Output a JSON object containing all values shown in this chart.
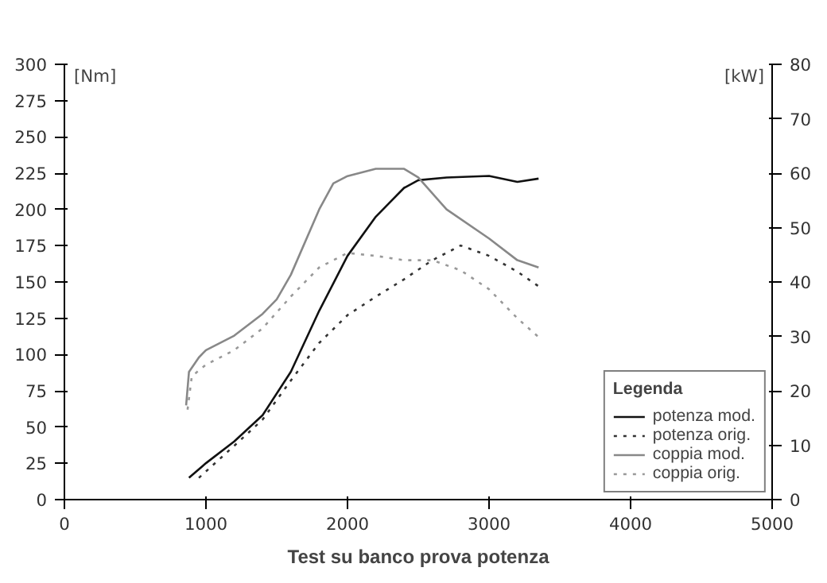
{
  "chart_data": {
    "type": "line",
    "title": "Test su banco prova potenza",
    "ylabel": "[Nm]",
    "y2label": "[kW]",
    "legend_title": "Legenda",
    "legend": "bottom right",
    "grid": false,
    "xlim": [
      0,
      5000
    ],
    "xticks": [
      0,
      1000,
      2000,
      3000,
      4000,
      5000
    ],
    "ylim": [
      0,
      300
    ],
    "yticks": [
      0,
      25,
      50,
      75,
      100,
      125,
      150,
      175,
      200,
      225,
      250,
      275,
      300
    ],
    "y2lim": [
      0,
      80
    ],
    "y2ticks": [
      0,
      10,
      20,
      30,
      40,
      50,
      60,
      70,
      80
    ],
    "series": [
      {
        "name": "potenza mod.",
        "color": "#111111",
        "axis": "y2",
        "line_style": "solid",
        "x": [
          880,
          1000,
          1200,
          1400,
          1600,
          1800,
          2000,
          2200,
          2400,
          2500,
          2700,
          3000,
          3200,
          3350
        ],
        "values": [
          4,
          6.7,
          10.7,
          15.5,
          23.5,
          34.7,
          44.8,
          52,
          57.3,
          58.7,
          59.2,
          59.5,
          58.4,
          59
        ]
      },
      {
        "name": "potenza orig.",
        "color": "#333333",
        "axis": "y2",
        "line_style": "dotted",
        "x": [
          950,
          1200,
          1400,
          1600,
          1800,
          2000,
          2200,
          2400,
          2600,
          2800,
          3000,
          3200,
          3350
        ],
        "values": [
          4,
          9.9,
          14.7,
          21.9,
          28.8,
          33.9,
          37.3,
          40.5,
          44,
          46.7,
          44.8,
          41.9,
          39.2
        ]
      },
      {
        "name": "coppia mod.",
        "color": "#888888",
        "line_style": "solid",
        "x": [
          860,
          880,
          950,
          1000,
          1200,
          1400,
          1500,
          1600,
          1800,
          1900,
          2000,
          2200,
          2400,
          2500,
          2700,
          3000,
          3200,
          3350
        ],
        "values": [
          65,
          88,
          98,
          103,
          113,
          128,
          138,
          155,
          200,
          218,
          223,
          228,
          228,
          222,
          200,
          180,
          165,
          160
        ]
      },
      {
        "name": "coppia orig.",
        "color": "#999999",
        "line_style": "dotted",
        "x": [
          870,
          900,
          1000,
          1200,
          1400,
          1600,
          1800,
          2000,
          2200,
          2400,
          2600,
          2800,
          3000,
          3200,
          3350
        ],
        "values": [
          62,
          85,
          93,
          103,
          118,
          140,
          160,
          170,
          168,
          165,
          165,
          158,
          145,
          125,
          112
        ]
      }
    ]
  }
}
